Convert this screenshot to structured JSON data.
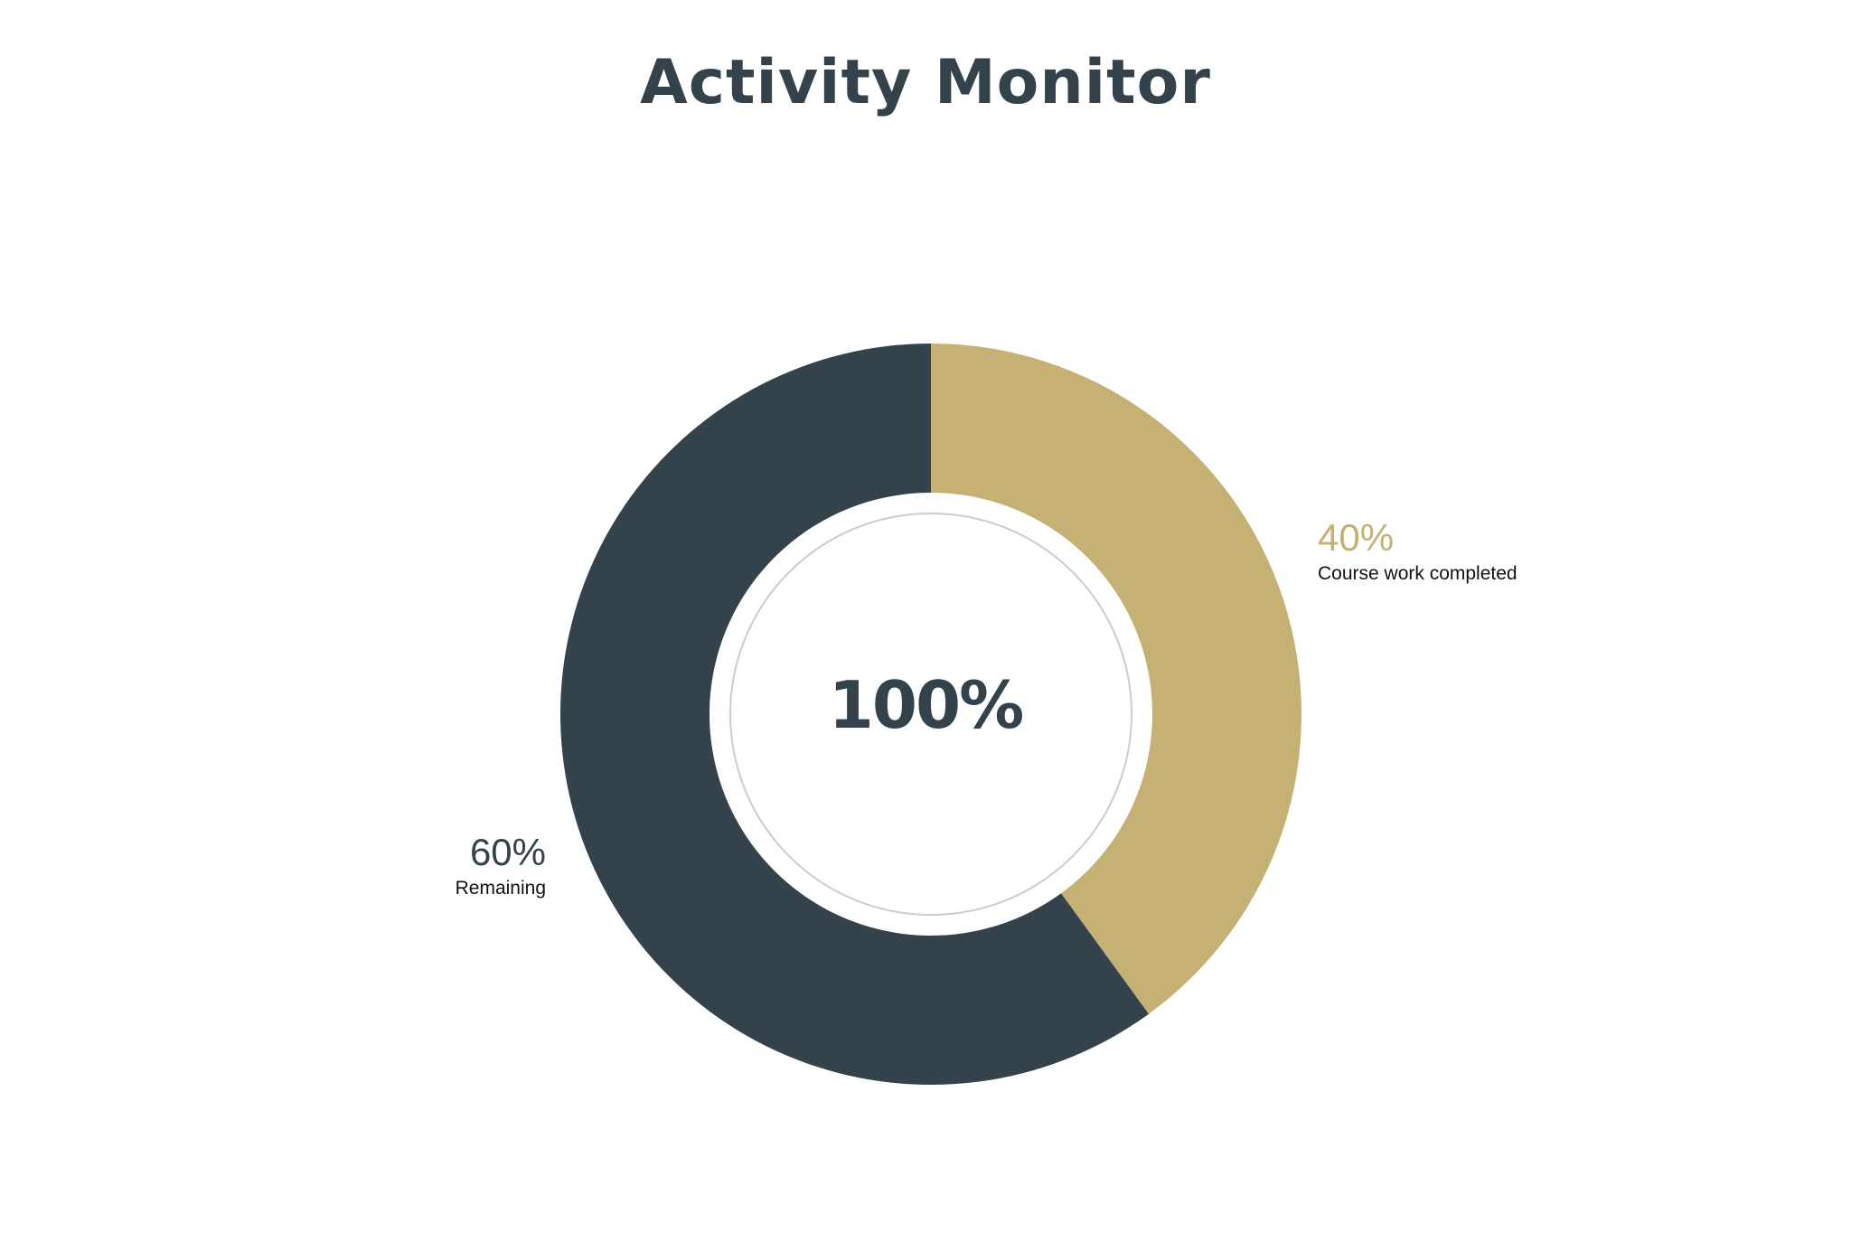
{
  "chart_data": {
    "type": "pie",
    "style": "donut",
    "title": "Activity Monitor",
    "center_label": "100%",
    "slices": [
      {
        "label": "Course work completed",
        "value": 40,
        "display": "40%",
        "color": "#c5b173"
      },
      {
        "label": "Remaining",
        "value": 60,
        "display": "60%",
        "color": "#34434b"
      }
    ]
  },
  "colors": {
    "accent": "#c5b173",
    "primary": "#34434b",
    "inner_ring": "#cccccc"
  }
}
